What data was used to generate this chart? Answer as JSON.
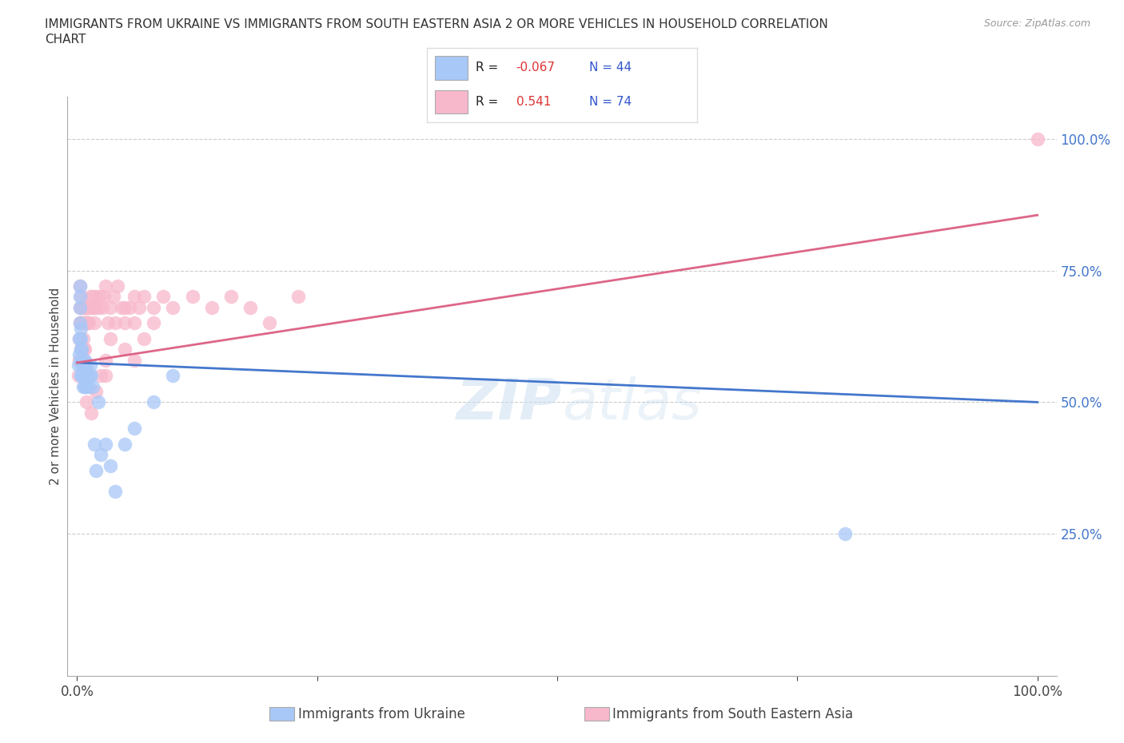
{
  "title_line1": "IMMIGRANTS FROM UKRAINE VS IMMIGRANTS FROM SOUTH EASTERN ASIA 2 OR MORE VEHICLES IN HOUSEHOLD CORRELATION",
  "title_line2": "CHART",
  "source": "Source: ZipAtlas.com",
  "ylabel": "2 or more Vehicles in Household",
  "ytick_labels": [
    "25.0%",
    "50.0%",
    "75.0%",
    "100.0%"
  ],
  "ytick_values": [
    0.25,
    0.5,
    0.75,
    1.0
  ],
  "legend_ukraine": "Immigrants from Ukraine",
  "legend_sea": "Immigrants from South Eastern Asia",
  "R_ukraine": -0.067,
  "N_ukraine": 44,
  "R_sea": 0.541,
  "N_sea": 74,
  "color_ukraine": "#a8c8f8",
  "color_sea": "#f8b8cc",
  "line_color_ukraine": "#4477cc",
  "line_color_sea": "#dd6688",
  "ukraine_x": [
    0.001,
    0.002,
    0.002,
    0.003,
    0.003,
    0.003,
    0.003,
    0.004,
    0.004,
    0.004,
    0.004,
    0.004,
    0.005,
    0.005,
    0.005,
    0.006,
    0.006,
    0.007,
    0.007,
    0.008,
    0.008,
    0.008,
    0.009,
    0.009,
    0.01,
    0.01,
    0.011,
    0.012,
    0.013,
    0.014,
    0.015,
    0.016,
    0.018,
    0.02,
    0.022,
    0.025,
    0.03,
    0.035,
    0.04,
    0.05,
    0.06,
    0.08,
    0.1,
    0.8
  ],
  "ukraine_y": [
    0.57,
    0.62,
    0.59,
    0.65,
    0.68,
    0.7,
    0.72,
    0.55,
    0.58,
    0.6,
    0.62,
    0.64,
    0.55,
    0.57,
    0.6,
    0.53,
    0.56,
    0.55,
    0.58,
    0.53,
    0.55,
    0.58,
    0.53,
    0.56,
    0.55,
    0.57,
    0.55,
    0.53,
    0.55,
    0.57,
    0.55,
    0.53,
    0.42,
    0.37,
    0.5,
    0.4,
    0.42,
    0.38,
    0.33,
    0.42,
    0.45,
    0.5,
    0.55,
    0.25
  ],
  "sea_x": [
    0.001,
    0.002,
    0.002,
    0.003,
    0.003,
    0.003,
    0.004,
    0.004,
    0.004,
    0.005,
    0.005,
    0.005,
    0.006,
    0.006,
    0.007,
    0.007,
    0.007,
    0.008,
    0.008,
    0.008,
    0.009,
    0.009,
    0.01,
    0.01,
    0.011,
    0.011,
    0.012,
    0.013,
    0.014,
    0.015,
    0.016,
    0.017,
    0.018,
    0.019,
    0.02,
    0.022,
    0.024,
    0.026,
    0.028,
    0.03,
    0.032,
    0.035,
    0.038,
    0.042,
    0.046,
    0.05,
    0.055,
    0.06,
    0.065,
    0.07,
    0.08,
    0.09,
    0.1,
    0.12,
    0.14,
    0.16,
    0.18,
    0.2,
    0.23,
    0.03,
    0.05,
    0.06,
    0.07,
    0.08,
    0.01,
    0.015,
    0.02,
    0.025,
    0.03,
    0.035,
    0.04,
    0.05,
    0.06,
    1.0
  ],
  "sea_y": [
    0.55,
    0.62,
    0.58,
    0.68,
    0.65,
    0.72,
    0.6,
    0.65,
    0.7,
    0.6,
    0.65,
    0.68,
    0.58,
    0.62,
    0.6,
    0.65,
    0.68,
    0.6,
    0.65,
    0.68,
    0.65,
    0.68,
    0.65,
    0.68,
    0.65,
    0.68,
    0.65,
    0.68,
    0.7,
    0.68,
    0.7,
    0.68,
    0.65,
    0.68,
    0.7,
    0.68,
    0.7,
    0.68,
    0.7,
    0.72,
    0.65,
    0.68,
    0.7,
    0.72,
    0.68,
    0.65,
    0.68,
    0.7,
    0.68,
    0.7,
    0.68,
    0.7,
    0.68,
    0.7,
    0.68,
    0.7,
    0.68,
    0.65,
    0.7,
    0.55,
    0.6,
    0.58,
    0.62,
    0.65,
    0.5,
    0.48,
    0.52,
    0.55,
    0.58,
    0.62,
    0.65,
    0.68,
    0.65,
    1.0
  ]
}
